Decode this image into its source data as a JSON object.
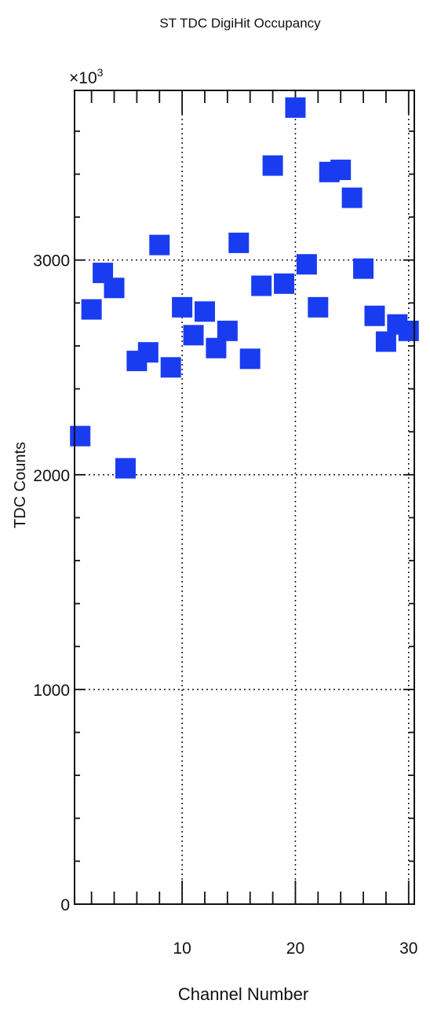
{
  "chart_data": {
    "type": "scatter",
    "title": "ST TDC DigiHit Occupancy",
    "xlabel": "Channel Number",
    "ylabel": "TDC Counts",
    "exponent_label": "×10",
    "exponent_power": "3",
    "xlim": [
      0.5,
      30.5
    ],
    "ylim": [
      0,
      3790
    ],
    "x_ticks": [
      10,
      20,
      30
    ],
    "x_tick_labels": [
      "10",
      "20",
      "30"
    ],
    "y_ticks": [
      0,
      1000,
      2000,
      3000
    ],
    "y_tick_labels": [
      "0",
      "1000",
      "2000",
      "3000"
    ],
    "grid": true,
    "marker": "square",
    "marker_color": "#1a3cf0",
    "series": [
      {
        "x": [
          1,
          2,
          3,
          4,
          5,
          6,
          7,
          8,
          9,
          10,
          11,
          12,
          13,
          14,
          15,
          16,
          17,
          18,
          19,
          20,
          21,
          22,
          23,
          24,
          25,
          26,
          27,
          28,
          29,
          30
        ],
        "values": [
          2180,
          2770,
          2940,
          2870,
          2030,
          2530,
          2570,
          3070,
          2500,
          2780,
          2650,
          2760,
          2590,
          2670,
          3080,
          2540,
          2880,
          3440,
          2890,
          3710,
          2980,
          2780,
          3410,
          3420,
          3290,
          2960,
          2740,
          2620,
          2700,
          2670
        ]
      }
    ]
  }
}
